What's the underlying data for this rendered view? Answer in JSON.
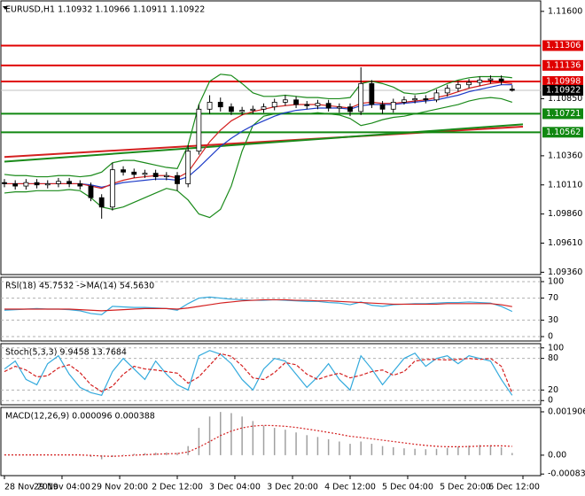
{
  "chart_data": [
    {
      "type": "candlestick",
      "title": "EURUSD,H1  1.10932 1.10966 1.10911 1.10922",
      "ylim": [
        1.0934,
        1.1169
      ],
      "yticks": [
        {
          "value": 1.116,
          "label": "1.11600"
        },
        {
          "value": 1.1085,
          "label": "1.10850"
        },
        {
          "value": 1.1036,
          "label": "1.10360"
        },
        {
          "value": 1.1011,
          "label": "1.10110"
        },
        {
          "value": 1.0986,
          "label": "1.09860"
        },
        {
          "value": 1.0961,
          "label": "1.09610"
        },
        {
          "value": 1.0936,
          "label": "1.09360"
        }
      ],
      "open": [
        1.1013,
        1.1012,
        1.101,
        1.1013,
        1.1011,
        1.1012,
        1.1014,
        1.1012,
        1.101,
        1.1,
        1.0992,
        1.1024,
        1.1022,
        1.102,
        1.1021,
        1.1018,
        1.1019,
        1.1012,
        1.104,
        1.1076,
        1.1082,
        1.1078,
        1.1074,
        1.1075,
        1.1076,
        1.1078,
        1.1082,
        1.1084,
        1.108,
        1.1079,
        1.1081,
        1.1077,
        1.1078,
        1.1074,
        1.1098,
        1.108,
        1.1076,
        1.1082,
        1.1084,
        1.1085,
        1.1084,
        1.109,
        1.1094,
        1.1097,
        1.1099,
        1.1101,
        1.1102,
        1.10932
      ],
      "high": [
        1.1016,
        1.1015,
        1.1016,
        1.1016,
        1.1015,
        1.1017,
        1.1017,
        1.1015,
        1.1013,
        1.1003,
        1.103,
        1.1027,
        1.1025,
        1.1024,
        1.1024,
        1.1022,
        1.1022,
        1.1045,
        1.108,
        1.1088,
        1.1086,
        1.1081,
        1.1078,
        1.1079,
        1.1081,
        1.1085,
        1.1088,
        1.1087,
        1.1083,
        1.1084,
        1.1084,
        1.1081,
        1.1081,
        1.1112,
        1.1101,
        1.1083,
        1.1085,
        1.1087,
        1.1088,
        1.1088,
        1.1093,
        1.1097,
        1.11,
        1.1102,
        1.1104,
        1.1105,
        1.1105,
        1.10966
      ],
      "low": [
        1.1009,
        1.1007,
        1.1007,
        1.1008,
        1.1008,
        1.1009,
        1.1009,
        1.1007,
        1.0997,
        1.0982,
        1.0989,
        1.1019,
        1.1017,
        1.1017,
        1.1015,
        1.1015,
        1.1006,
        1.1009,
        1.1037,
        1.1072,
        1.1074,
        1.1071,
        1.1071,
        1.1072,
        1.1073,
        1.1075,
        1.1079,
        1.1077,
        1.1076,
        1.1076,
        1.1074,
        1.1073,
        1.107,
        1.1071,
        1.1077,
        1.1072,
        1.1073,
        1.108,
        1.1081,
        1.1081,
        1.1082,
        1.1087,
        1.1091,
        1.1094,
        1.1096,
        1.1098,
        1.1097,
        1.10911
      ],
      "close": [
        1.1012,
        1.101,
        1.1013,
        1.1011,
        1.1012,
        1.1014,
        1.1012,
        1.101,
        1.1,
        1.0992,
        1.1024,
        1.1022,
        1.102,
        1.1021,
        1.1018,
        1.1019,
        1.1012,
        1.104,
        1.1076,
        1.1082,
        1.1078,
        1.1074,
        1.1075,
        1.1076,
        1.1078,
        1.1082,
        1.1084,
        1.108,
        1.1079,
        1.1081,
        1.1077,
        1.1078,
        1.1074,
        1.1098,
        1.108,
        1.1076,
        1.1082,
        1.1084,
        1.1085,
        1.1084,
        1.109,
        1.1094,
        1.1097,
        1.1099,
        1.1101,
        1.1102,
        1.11,
        1.10922
      ],
      "series": [
        {
          "style": "solid",
          "color": "#1a8a1a",
          "values": [
            1.102,
            1.1019,
            1.1019,
            1.1018,
            1.1018,
            1.1019,
            1.1019,
            1.1018,
            1.1019,
            1.1022,
            1.103,
            1.1032,
            1.1032,
            1.103,
            1.1028,
            1.1026,
            1.1025,
            1.1045,
            1.108,
            1.11,
            1.1106,
            1.1105,
            1.1098,
            1.109,
            1.1087,
            1.1087,
            1.1088,
            1.1087,
            1.1086,
            1.1086,
            1.1085,
            1.1085,
            1.1086,
            1.1098,
            1.11,
            1.1098,
            1.1095,
            1.109,
            1.1089,
            1.109,
            1.1094,
            1.1098,
            1.1101,
            1.1103,
            1.1104,
            1.1104,
            1.1104,
            1.1103
          ]
        },
        {
          "style": "solid",
          "color": "#1a8a1a",
          "values": [
            1.1004,
            1.1005,
            1.1005,
            1.1006,
            1.1006,
            1.1006,
            1.1007,
            1.1006,
            1.1,
            1.0992,
            1.099,
            1.0992,
            1.0996,
            1.1,
            1.1004,
            1.1008,
            1.1006,
            1.0998,
            1.0986,
            1.0983,
            1.099,
            1.101,
            1.104,
            1.1062,
            1.107,
            1.1072,
            1.1073,
            1.1072,
            1.1072,
            1.1073,
            1.1072,
            1.1071,
            1.1068,
            1.1062,
            1.1064,
            1.1067,
            1.1069,
            1.107,
            1.1072,
            1.1074,
            1.1076,
            1.1078,
            1.108,
            1.1083,
            1.1085,
            1.1086,
            1.1085,
            1.1082
          ]
        },
        {
          "style": "solid",
          "color": "#1e3cc8",
          "values": [
            1.1012,
            1.1012,
            1.1012,
            1.1012,
            1.1012,
            1.1012,
            1.1012,
            1.1012,
            1.1011,
            1.1009,
            1.1011,
            1.1013,
            1.1014,
            1.1015,
            1.1016,
            1.1016,
            1.1015,
            1.1018,
            1.1026,
            1.1035,
            1.1044,
            1.1051,
            1.1057,
            1.1062,
            1.1066,
            1.107,
            1.1073,
            1.1075,
            1.1076,
            1.1077,
            1.1077,
            1.1077,
            1.1076,
            1.1079,
            1.108,
            1.108,
            1.108,
            1.1081,
            1.1082,
            1.1083,
            1.1084,
            1.1086,
            1.1088,
            1.1091,
            1.1093,
            1.1095,
            1.1097,
            1.1097
          ]
        },
        {
          "style": "solid",
          "color": "#d42020",
          "values": [
            1.1012,
            1.1012,
            1.1012,
            1.1012,
            1.1012,
            1.1012,
            1.1012,
            1.1012,
            1.101,
            1.1008,
            1.1012,
            1.1015,
            1.1017,
            1.1018,
            1.1019,
            1.1019,
            1.1017,
            1.1022,
            1.1035,
            1.1048,
            1.1058,
            1.1066,
            1.1071,
            1.1074,
            1.1076,
            1.1078,
            1.1079,
            1.108,
            1.108,
            1.108,
            1.1079,
            1.1078,
            1.1077,
            1.1081,
            1.1082,
            1.1081,
            1.1081,
            1.1082,
            1.1083,
            1.1084,
            1.1086,
            1.1088,
            1.1091,
            1.1094,
            1.1096,
            1.1098,
            1.1099,
            1.1098
          ]
        }
      ],
      "trendlines": [
        {
          "color": "#d42020",
          "x": [
            0,
            48
          ],
          "values": [
            1.1035,
            1.1061
          ]
        },
        {
          "color": "#1a8a1a",
          "x": [
            0,
            48
          ],
          "values": [
            1.1031,
            1.1063
          ]
        }
      ],
      "levels": [
        {
          "value": 1.11306,
          "color": "#e00000"
        },
        {
          "value": 1.11136,
          "color": "#e00000"
        },
        {
          "value": 1.10998,
          "color": "#e00000"
        },
        {
          "value": 1.10922,
          "color": "#000000"
        },
        {
          "value": 1.10721,
          "color": "#118811"
        },
        {
          "value": 1.10562,
          "color": "#118811"
        }
      ]
    },
    {
      "type": "line",
      "title": "RSI(18) 45.7532  ->MA(14) 54.5630",
      "ylim": [
        -8,
        108
      ],
      "yticks": [
        100,
        70,
        30,
        0
      ],
      "grid": true,
      "series": [
        {
          "style": "solid",
          "color": "#33aadd",
          "values": [
            48,
            49,
            50,
            51,
            50,
            50,
            49,
            47,
            42,
            40,
            55,
            54,
            53,
            53,
            52,
            51,
            48,
            60,
            70,
            72,
            70,
            68,
            67,
            66,
            66,
            67,
            66,
            65,
            64,
            64,
            62,
            61,
            58,
            63,
            57,
            55,
            58,
            59,
            60,
            60,
            61,
            62,
            62,
            63,
            62,
            61,
            55,
            45.7532
          ]
        },
        {
          "style": "solid",
          "color": "#d42020",
          "values": [
            50,
            50,
            50,
            50,
            50,
            50,
            50,
            49,
            48,
            47,
            48,
            49,
            50,
            51,
            51,
            51,
            50,
            52,
            55,
            58,
            61,
            63,
            65,
            66,
            67,
            67,
            67,
            66,
            66,
            65,
            65,
            64,
            63,
            62,
            61,
            60,
            59,
            59,
            59,
            59,
            59,
            60,
            60,
            60,
            60,
            60,
            58,
            54.563
          ]
        }
      ]
    },
    {
      "type": "line",
      "title": "Stoch(5,3,3) 9.9458 13.7684",
      "ylim": [
        -8,
        108
      ],
      "yticks": [
        100,
        80,
        20,
        0
      ],
      "grid": true,
      "series": [
        {
          "style": "solid",
          "color": "#33aadd",
          "values": [
            60,
            75,
            40,
            30,
            70,
            85,
            50,
            25,
            15,
            10,
            55,
            80,
            60,
            40,
            75,
            50,
            30,
            20,
            85,
            95,
            88,
            70,
            40,
            20,
            60,
            80,
            75,
            50,
            25,
            45,
            70,
            40,
            20,
            85,
            60,
            30,
            55,
            80,
            90,
            65,
            80,
            85,
            70,
            85,
            80,
            75,
            40,
            9.9458
          ]
        },
        {
          "style": "dashed",
          "color": "#d42020",
          "values": [
            55,
            65,
            58,
            45,
            47,
            62,
            68,
            53,
            30,
            17,
            27,
            50,
            65,
            60,
            58,
            55,
            52,
            33,
            45,
            67,
            89,
            84,
            66,
            43,
            40,
            53,
            72,
            68,
            50,
            40,
            47,
            52,
            43,
            48,
            55,
            58,
            48,
            55,
            75,
            78,
            78,
            77,
            78,
            80,
            78,
            80,
            65,
            13.7684
          ]
        }
      ]
    },
    {
      "type": "bar",
      "title": "MACD(12,26,9) 0.000096 0.000388",
      "ylim": [
        -0.0009,
        0.0021
      ],
      "yticks": [
        0.001906,
        {
          "value": 0,
          "label": "0.00"
        },
        {
          "value": -0.00083,
          "label": "-0.00083"
        }
      ],
      "xlim": [
        0,
        48
      ],
      "xticks": [
        {
          "value": 0,
          "label": "28 Nov 2019"
        },
        {
          "value": 5.33,
          "label": "29 Nov 04:00"
        },
        {
          "value": 10.67,
          "label": "29 Nov 20:00"
        },
        {
          "value": 16,
          "label": "2 Dec 12:00"
        },
        {
          "value": 21.33,
          "label": "3 Dec 04:00"
        },
        {
          "value": 26.67,
          "label": "3 Dec 20:00"
        },
        {
          "value": 32,
          "label": "4 Dec 12:00"
        },
        {
          "value": 37.33,
          "label": "5 Dec 04:00"
        },
        {
          "value": 42.67,
          "label": "5 Dec 20:00"
        },
        {
          "value": 48,
          "label": "6 Dec 12:00"
        }
      ],
      "series": [
        {
          "style": "histogram",
          "color": "#a0a0a0",
          "values": [
            2e-05,
            1e-05,
            1e-05,
            0,
            0,
            1e-05,
            1e-05,
            -1e-05,
            -8e-05,
            -0.00018,
            -8e-05,
            2e-05,
            6e-05,
            9e-05,
            0.00011,
            0.00012,
            0.0001,
            0.0004,
            0.0012,
            0.0017,
            0.0019,
            0.00185,
            0.0017,
            0.0015,
            0.0013,
            0.0012,
            0.00112,
            0.001,
            0.00088,
            0.0008,
            0.0007,
            0.0006,
            0.0005,
            0.0006,
            0.0005,
            0.0004,
            0.00035,
            0.0003,
            0.00028,
            0.00026,
            0.00028,
            0.00032,
            0.00038,
            0.00042,
            0.00045,
            0.00044,
            0.00035,
            9.6e-05
          ]
        },
        {
          "style": "dotted",
          "color": "#d42020",
          "values": [
            1e-05,
            1e-05,
            1e-05,
            1e-05,
            1e-05,
            1e-05,
            1e-05,
            1e-05,
            -1e-05,
            -4e-05,
            -5e-05,
            -3e-05,
            0,
            2e-05,
            4e-05,
            6e-05,
            7e-05,
            0.00014,
            0.00035,
            0.0006,
            0.00086,
            0.00106,
            0.0012,
            0.00128,
            0.00131,
            0.0013,
            0.00127,
            0.00122,
            0.00115,
            0.00108,
            0.001,
            0.00092,
            0.00083,
            0.00078,
            0.00072,
            0.00066,
            0.0006,
            0.00054,
            0.00048,
            0.00043,
            0.00039,
            0.00037,
            0.00037,
            0.00038,
            0.0004,
            0.00041,
            0.00041,
            0.000388
          ]
        }
      ]
    }
  ]
}
